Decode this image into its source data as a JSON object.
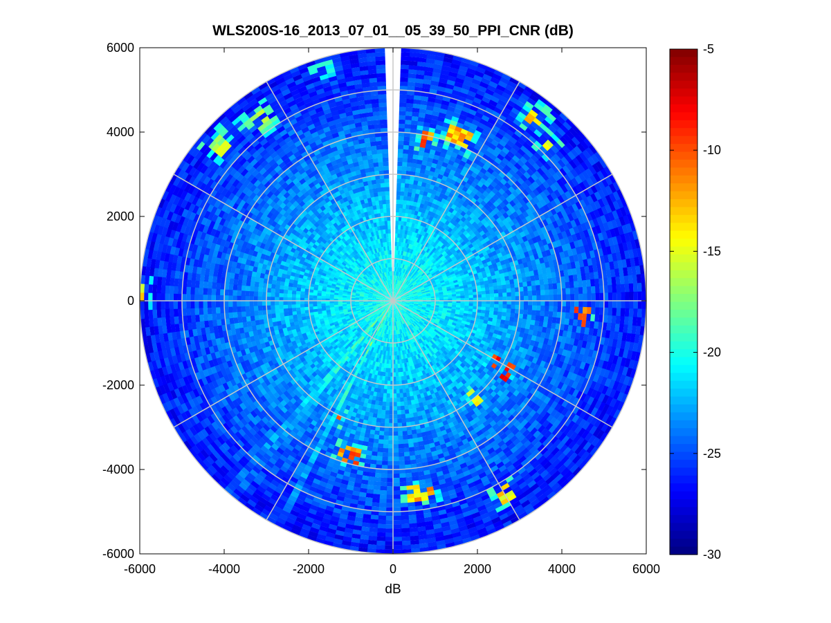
{
  "chart_data": {
    "type": "heatmap",
    "subtype": "polar-ppi",
    "title": "WLS200S-16_2013_07_01__05_39_50_PPI_CNR (dB)",
    "xlabel": "dB",
    "ylabel": "",
    "xlim": [
      -6000,
      6000
    ],
    "ylim": [
      -6000,
      6000
    ],
    "x_ticks": [
      "-6000",
      "-4000",
      "-2000",
      "0",
      "2000",
      "4000",
      "6000"
    ],
    "y_ticks": [
      "6000",
      "4000",
      "2000",
      "0",
      "-2000",
      "-4000",
      "-6000"
    ],
    "polar_grid": {
      "rings": [
        1000,
        2000,
        3000,
        4000,
        5000,
        6000
      ],
      "spokes_deg": [
        0,
        30,
        60,
        90,
        120,
        150,
        180,
        210,
        240,
        270,
        300,
        330
      ],
      "color": "#c8c8c8"
    },
    "max_range": 6000,
    "blank_sector_deg": [
      -2,
      2
    ],
    "colormap": "jet",
    "colorbar": {
      "range": [
        -30,
        -5
      ],
      "ticks": [
        "-5",
        "-10",
        "-15",
        "-20",
        "-25",
        "-30"
      ]
    },
    "cnr_profile": {
      "near_range": 1500,
      "near_value": -20,
      "far_value": -26.5,
      "noise": 1.5
    },
    "hotspots": [
      {
        "azimuth_deg": 12,
        "range": 3900,
        "width_deg": 6,
        "depth": 200,
        "value": -11
      },
      {
        "azimuth_deg": 22,
        "range": 4200,
        "width_deg": 8,
        "depth": 250,
        "value": -13
      },
      {
        "azimuth_deg": 38,
        "range": 5500,
        "width_deg": 4,
        "depth": 250,
        "value": -13
      },
      {
        "azimuth_deg": 45,
        "range": 5200,
        "width_deg": 3,
        "depth": 200,
        "value": -15
      },
      {
        "azimuth_deg": 95,
        "range": 4500,
        "width_deg": 5,
        "depth": 200,
        "value": -11
      },
      {
        "azimuth_deg": 122,
        "range": 3000,
        "width_deg": 7,
        "depth": 300,
        "value": -9
      },
      {
        "azimuth_deg": 140,
        "range": 3000,
        "width_deg": 6,
        "depth": 200,
        "value": -14
      },
      {
        "azimuth_deg": 172,
        "range": 4600,
        "width_deg": 8,
        "depth": 200,
        "value": -13
      },
      {
        "azimuth_deg": 150,
        "range": 5300,
        "width_deg": 5,
        "depth": 200,
        "value": -14
      },
      {
        "azimuth_deg": 196,
        "range": 3800,
        "width_deg": 10,
        "depth": 220,
        "value": -11
      },
      {
        "azimuth_deg": 205,
        "range": 3100,
        "width_deg": 4,
        "depth": 200,
        "value": -12
      },
      {
        "azimuth_deg": 272,
        "range": 5950,
        "width_deg": 4,
        "depth": 100,
        "value": -14
      },
      {
        "azimuth_deg": 312,
        "range": 5500,
        "width_deg": 6,
        "depth": 250,
        "value": -16
      },
      {
        "azimuth_deg": 323,
        "range": 5300,
        "width_deg": 8,
        "depth": 250,
        "value": -17
      },
      {
        "azimuth_deg": 343,
        "range": 5800,
        "width_deg": 3,
        "depth": 150,
        "value": -19
      }
    ],
    "wedges": [
      {
        "azimuth_deg": 207,
        "width_deg": 4,
        "delta": 3
      },
      {
        "azimuth_deg": 214,
        "width_deg": 2,
        "delta": -3
      },
      {
        "azimuth_deg": 220,
        "width_deg": 3,
        "delta": 2
      },
      {
        "azimuth_deg": 42,
        "width_deg": 2,
        "delta": -2
      }
    ]
  }
}
